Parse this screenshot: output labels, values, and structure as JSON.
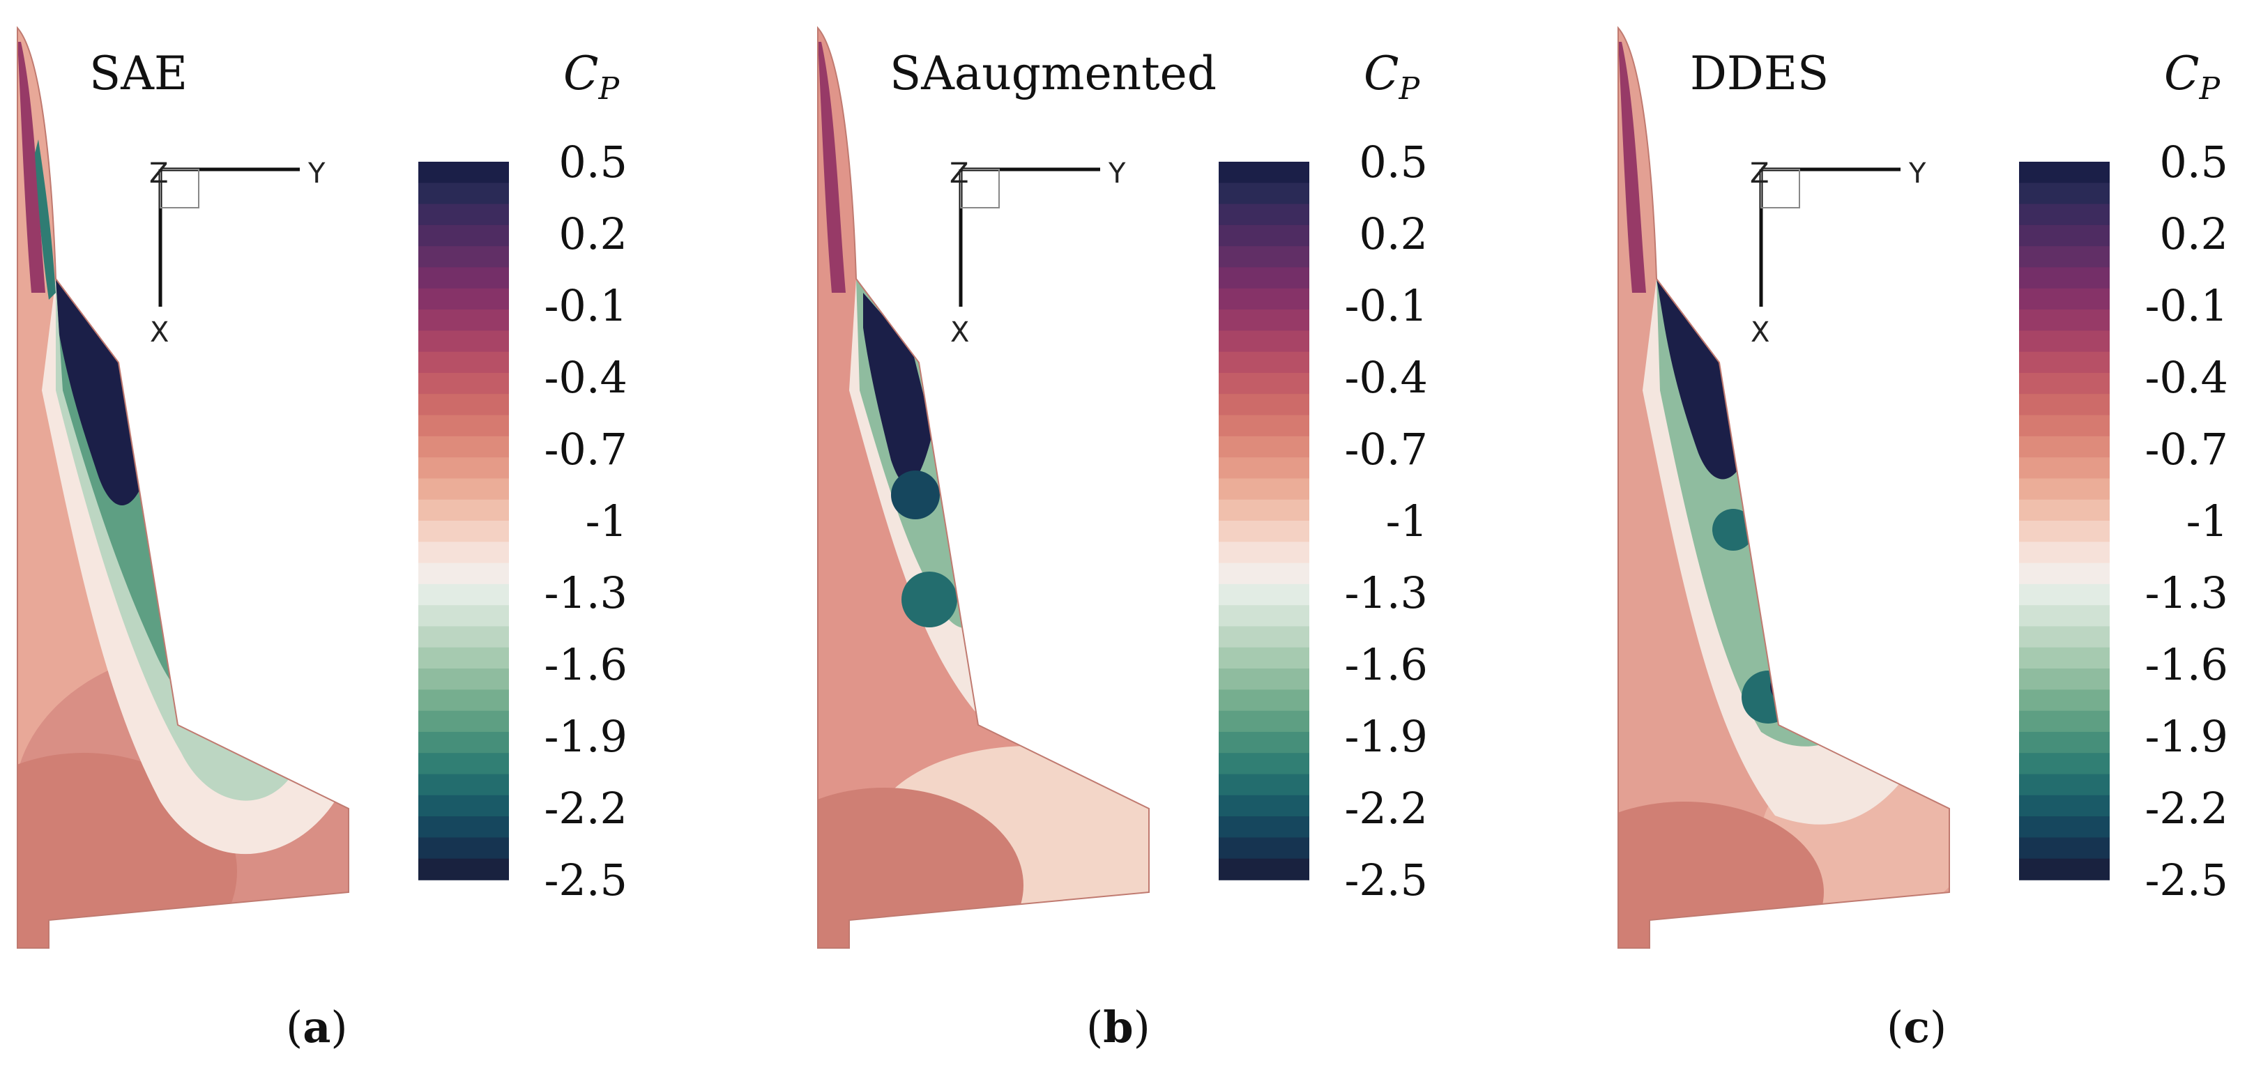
{
  "colors": {
    "scale": [
      "#1b1f48",
      "#2a2a56",
      "#3d2b5e",
      "#4f2c62",
      "#612f66",
      "#742f68",
      "#863368",
      "#973a67",
      "#a84466",
      "#b75066",
      "#c35d67",
      "#cd6b69",
      "#d67a70",
      "#de8b7b",
      "#e59b88",
      "#ebad98",
      "#f0bfac",
      "#f4d1c3",
      "#f6e1d9",
      "#f3ece8",
      "#e2ece4",
      "#d0e2d4",
      "#bcd6c2",
      "#a6cab0",
      "#8fbc9f",
      "#76ae8f",
      "#5e9f83",
      "#468f7a",
      "#317f74",
      "#236d6e",
      "#1a5a67",
      "#16475e",
      "#163451",
      "#19223f"
    ],
    "dark": "#1b1f48",
    "teal": "#2f7c73",
    "salmon": "#d98f85",
    "cream": "#f6e7e0"
  },
  "colorbar": {
    "symbol": "C",
    "subscript": "P",
    "ticks": [
      "0.5",
      "0.2",
      "-0.1",
      "-0.4",
      "-0.7",
      "-1",
      "-1.3",
      "-1.6",
      "-1.9",
      "-2.2",
      "-2.5"
    ]
  },
  "axes": {
    "z": "Z",
    "y": "Y",
    "x": "X"
  },
  "panels": [
    {
      "title": "SAE",
      "caption_letter": "a"
    },
    {
      "title": "SAaugmented",
      "caption_letter": "b"
    },
    {
      "title": "DDES",
      "caption_letter": "c"
    }
  ]
}
